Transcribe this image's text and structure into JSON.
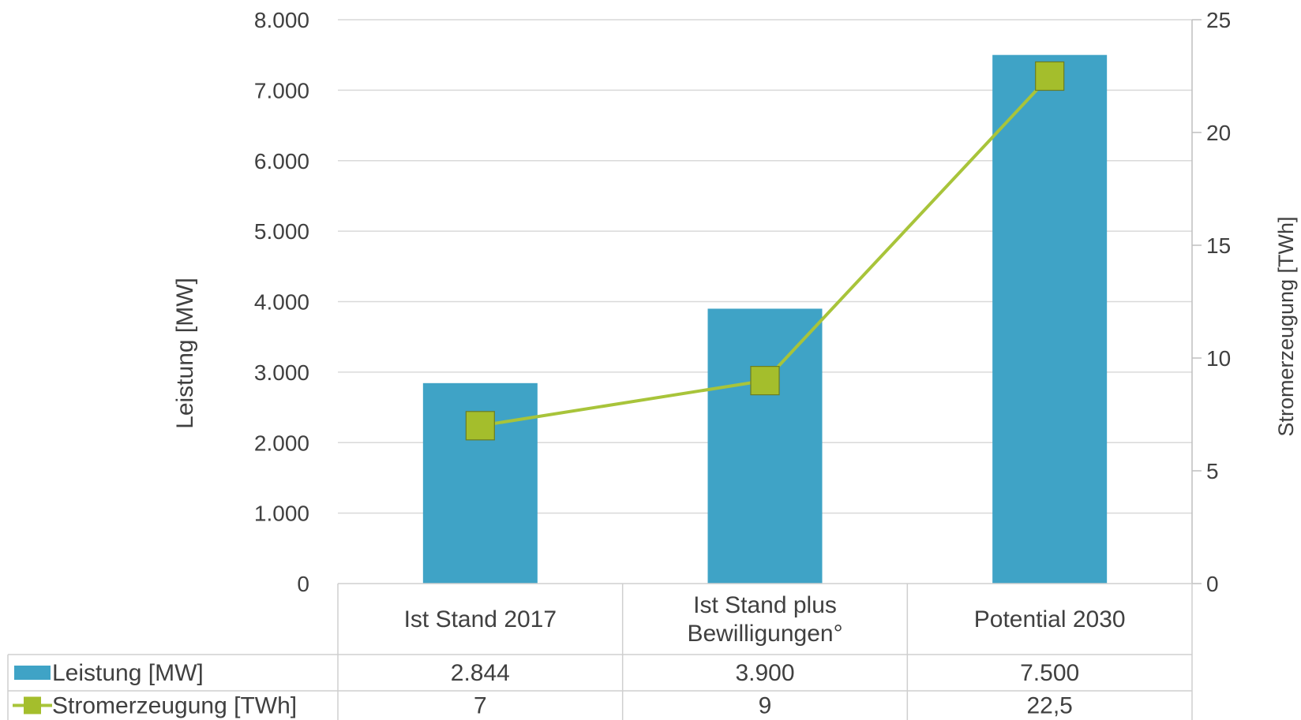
{
  "chart_data": {
    "type": "bar",
    "categories": [
      [
        "Ist Stand 2017"
      ],
      [
        "Ist Stand plus",
        "Bewilligungen°"
      ],
      [
        "Potential 2030"
      ]
    ],
    "series": [
      {
        "name": "Leistung [MW]",
        "type": "bar",
        "axis": "left",
        "values": [
          2844,
          3900,
          7500
        ],
        "labels": [
          "2.844",
          "3.900",
          "7.500"
        ],
        "color": "#3fa3c6"
      },
      {
        "name": "Stromerzeugung [TWh]",
        "type": "line",
        "axis": "right",
        "values": [
          7,
          9,
          22.5
        ],
        "labels": [
          "7",
          "9",
          "22,5"
        ],
        "color": "#a8c43a",
        "marker_color": "#a4be2c"
      }
    ],
    "ylabel": "Leistung  [MW]",
    "y2label": "Stromerzeugung [TWh]",
    "ylim": [
      0,
      8000
    ],
    "y_ticks": [
      "0",
      "1.000",
      "2.000",
      "3.000",
      "4.000",
      "5.000",
      "6.000",
      "7.000",
      "8.000"
    ],
    "y2lim": [
      0,
      25
    ],
    "y2_ticks": [
      "0",
      "5",
      "10",
      "15",
      "20",
      "25"
    ],
    "grid": true,
    "data_table": true
  }
}
